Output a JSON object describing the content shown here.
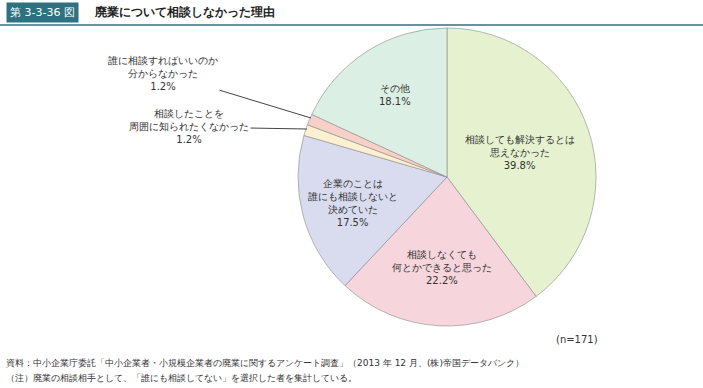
{
  "chart_data": {
    "type": "pie",
    "figure_number": "第 3-3-36 図",
    "title": "廃業について相談しなかった理由",
    "categories": [
      "相談しても解決するとは\n思えなかった",
      "相談しなくても\n何とかできると思った",
      "企業のことは\n誰にも相談しないと\n決めていた",
      "相談したことを\n周囲に知られたくなかった",
      "誰に相談すればいいのか\n分からなかった",
      "その他"
    ],
    "values": [
      39.8,
      22.2,
      17.5,
      1.2,
      1.2,
      18.1
    ],
    "value_labels": [
      "39.8%",
      "22.2%",
      "17.5%",
      "1.2%",
      "1.2%",
      "18.1%"
    ],
    "colors": [
      "#e6f2cf",
      "#f6d5dc",
      "#d9dcef",
      "#fbf0cf",
      "#f8d0c8",
      "#dcefe4"
    ],
    "data_labels": true,
    "sample_size": "(n=171)",
    "source": "資料：中小企業庁委託「中小企業者・小規模企業者の廃業に関するアンケート調査」（2013 年 12 月、(株)帝国データバンク）",
    "note": "（注）廃業の相談相手として、「誰にも相談してない」を選択した者を集計している。"
  }
}
